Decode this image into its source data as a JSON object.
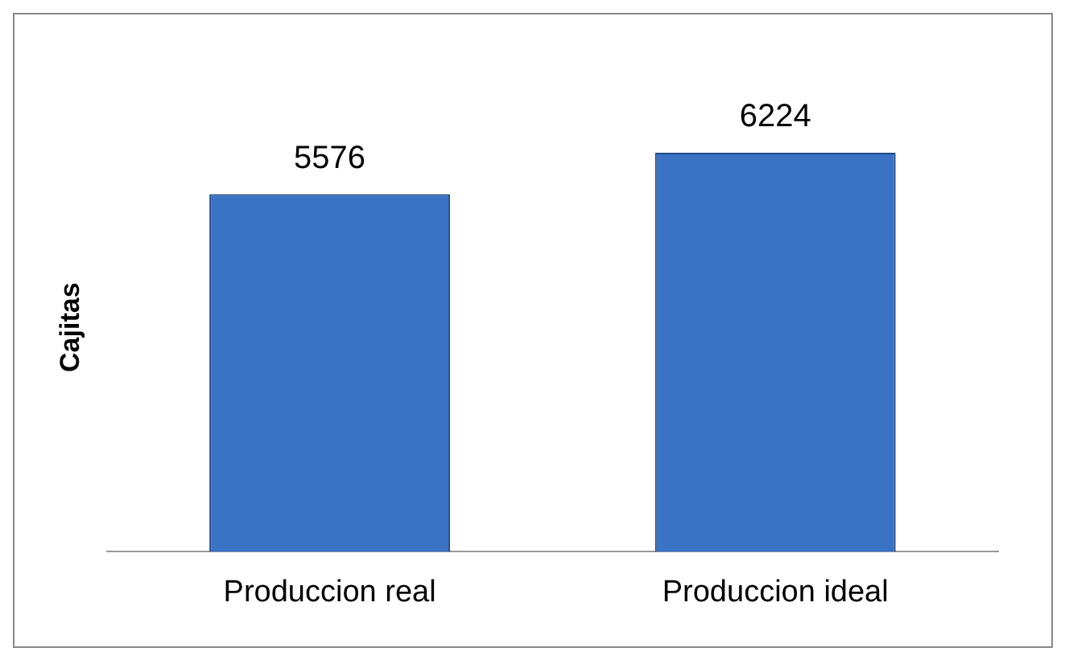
{
  "chart_data": {
    "type": "bar",
    "ylabel": "Cajitas",
    "categories": [
      "Produccion real",
      "Produccion ideal"
    ],
    "values": [
      5576,
      6224
    ],
    "color": "#3a72c4",
    "data_labels": true,
    "grid": false,
    "legend": false
  }
}
